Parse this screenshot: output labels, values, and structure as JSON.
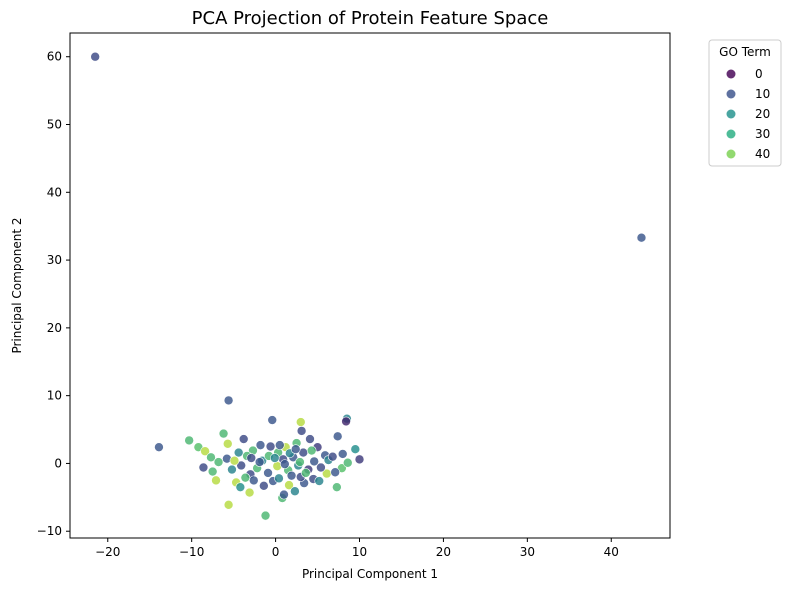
{
  "chart_data": {
    "type": "scatter",
    "title": "PCA Projection of Protein Feature Space",
    "xlabel": "Principal Component 1",
    "ylabel": "Principal Component 2",
    "xlim": [
      -24.5,
      47
    ],
    "ylim": [
      -11,
      63.5
    ],
    "x_ticks": [
      -20,
      -10,
      0,
      10,
      20,
      30,
      40
    ],
    "y_ticks": [
      -10,
      0,
      10,
      20,
      30,
      40,
      50,
      60
    ],
    "grid": false,
    "legend": {
      "title": "GO Term",
      "placement": "outside upper right",
      "entries": [
        {
          "label": "0",
          "color": "#440154"
        },
        {
          "label": "10",
          "color": "#3b528b"
        },
        {
          "label": "20",
          "color": "#21918c"
        },
        {
          "label": "30",
          "color": "#27ad81"
        },
        {
          "label": "40",
          "color": "#7ad151"
        }
      ]
    },
    "points": [
      {
        "x": -21.5,
        "y": 60.0,
        "go": 10
      },
      {
        "x": 43.6,
        "y": 33.3,
        "go": 12
      },
      {
        "x": -13.9,
        "y": 2.4,
        "go": 12
      },
      {
        "x": -5.6,
        "y": 9.3,
        "go": 12
      },
      {
        "x": -10.3,
        "y": 3.4,
        "go": 30
      },
      {
        "x": -0.4,
        "y": 6.4,
        "go": 12
      },
      {
        "x": 3.0,
        "y": 6.1,
        "go": 40
      },
      {
        "x": 8.5,
        "y": 6.6,
        "go": 20
      },
      {
        "x": 8.4,
        "y": 6.2,
        "go": 5
      },
      {
        "x": -6.2,
        "y": 4.4,
        "go": 30
      },
      {
        "x": -3.8,
        "y": 3.6,
        "go": 10
      },
      {
        "x": 3.1,
        "y": 4.8,
        "go": 10
      },
      {
        "x": 7.4,
        "y": 4.0,
        "go": 12
      },
      {
        "x": 9.5,
        "y": 2.1,
        "go": 22
      },
      {
        "x": 10.0,
        "y": 0.6,
        "go": 8
      },
      {
        "x": -9.2,
        "y": 2.4,
        "go": 32
      },
      {
        "x": -8.4,
        "y": 1.8,
        "go": 40
      },
      {
        "x": -7.7,
        "y": 0.9,
        "go": 30
      },
      {
        "x": -8.6,
        "y": -0.6,
        "go": 10
      },
      {
        "x": -7.5,
        "y": -1.2,
        "go": 30
      },
      {
        "x": -7.1,
        "y": -2.5,
        "go": 40
      },
      {
        "x": -5.7,
        "y": 2.9,
        "go": 40
      },
      {
        "x": -5.2,
        "y": -0.9,
        "go": 20
      },
      {
        "x": -4.7,
        "y": -2.8,
        "go": 40
      },
      {
        "x": -4.2,
        "y": -3.5,
        "go": 22
      },
      {
        "x": -3.1,
        "y": -4.3,
        "go": 40
      },
      {
        "x": -5.6,
        "y": -6.1,
        "go": 40
      },
      {
        "x": -1.2,
        "y": -7.7,
        "go": 30
      },
      {
        "x": 0.8,
        "y": -5.1,
        "go": 30
      },
      {
        "x": 1.0,
        "y": -4.6,
        "go": 12
      },
      {
        "x": 1.6,
        "y": -3.2,
        "go": 40
      },
      {
        "x": 2.3,
        "y": -4.1,
        "go": 20
      },
      {
        "x": 3.4,
        "y": -2.9,
        "go": 12
      },
      {
        "x": 4.5,
        "y": -2.3,
        "go": 10
      },
      {
        "x": 5.2,
        "y": -2.6,
        "go": 20
      },
      {
        "x": 6.1,
        "y": -1.5,
        "go": 40
      },
      {
        "x": 7.3,
        "y": -3.5,
        "go": 30
      },
      {
        "x": 7.9,
        "y": -0.7,
        "go": 32
      },
      {
        "x": 8.6,
        "y": 0.1,
        "go": 30
      },
      {
        "x": 8.0,
        "y": 1.4,
        "go": 12
      },
      {
        "x": 5.9,
        "y": 1.2,
        "go": 12
      },
      {
        "x": 5.0,
        "y": 2.4,
        "go": 8
      },
      {
        "x": 4.1,
        "y": 3.6,
        "go": 10
      },
      {
        "x": 2.5,
        "y": 3.0,
        "go": 30
      },
      {
        "x": 1.2,
        "y": 2.4,
        "go": 40
      },
      {
        "x": 0.3,
        "y": 1.6,
        "go": 30
      },
      {
        "x": -0.6,
        "y": 2.5,
        "go": 10
      },
      {
        "x": -1.8,
        "y": 2.7,
        "go": 12
      },
      {
        "x": -2.7,
        "y": 1.9,
        "go": 30
      },
      {
        "x": -3.4,
        "y": 1.1,
        "go": 30
      },
      {
        "x": -4.4,
        "y": 1.6,
        "go": 20
      },
      {
        "x": -5.8,
        "y": 0.7,
        "go": 12
      },
      {
        "x": -6.8,
        "y": 0.2,
        "go": 30
      },
      {
        "x": -4.1,
        "y": -0.3,
        "go": 10
      },
      {
        "x": -3.0,
        "y": -1.6,
        "go": 10
      },
      {
        "x": -2.2,
        "y": -0.7,
        "go": 30
      },
      {
        "x": -1.6,
        "y": 0.4,
        "go": 20
      },
      {
        "x": -0.9,
        "y": -1.4,
        "go": 12
      },
      {
        "x": -0.3,
        "y": -2.6,
        "go": 12
      },
      {
        "x": 0.2,
        "y": -0.4,
        "go": 40
      },
      {
        "x": 0.9,
        "y": 0.6,
        "go": 10
      },
      {
        "x": 1.5,
        "y": -1.0,
        "go": 30
      },
      {
        "x": 2.1,
        "y": 0.9,
        "go": 12
      },
      {
        "x": 2.7,
        "y": -0.3,
        "go": 20
      },
      {
        "x": 3.3,
        "y": 1.6,
        "go": 10
      },
      {
        "x": 3.9,
        "y": -0.9,
        "go": 8
      },
      {
        "x": 4.6,
        "y": 0.3,
        "go": 12
      },
      {
        "x": 5.4,
        "y": -0.6,
        "go": 10
      },
      {
        "x": 6.3,
        "y": 0.5,
        "go": 20
      },
      {
        "x": 7.1,
        "y": -1.3,
        "go": 12
      },
      {
        "x": -2.6,
        "y": -2.5,
        "go": 12
      },
      {
        "x": -1.4,
        "y": -3.3,
        "go": 10
      },
      {
        "x": 0.4,
        "y": -2.2,
        "go": 20
      },
      {
        "x": 1.9,
        "y": -1.8,
        "go": 12
      },
      {
        "x": 3.0,
        "y": -2.0,
        "go": 10
      },
      {
        "x": -0.8,
        "y": 1.1,
        "go": 30
      },
      {
        "x": 0.5,
        "y": 2.7,
        "go": 12
      },
      {
        "x": 1.7,
        "y": 1.5,
        "go": 20
      },
      {
        "x": 2.9,
        "y": 0.2,
        "go": 30
      },
      {
        "x": -1.9,
        "y": 0.2,
        "go": 12
      },
      {
        "x": -3.6,
        "y": -2.1,
        "go": 30
      },
      {
        "x": -4.9,
        "y": 0.4,
        "go": 40
      },
      {
        "x": 4.3,
        "y": 1.9,
        "go": 30
      },
      {
        "x": 6.8,
        "y": 1.0,
        "go": 10
      },
      {
        "x": 1.1,
        "y": -0.1,
        "go": 12
      },
      {
        "x": -0.1,
        "y": 0.8,
        "go": 20
      },
      {
        "x": 2.4,
        "y": 2.1,
        "go": 12
      },
      {
        "x": -2.9,
        "y": 0.8,
        "go": 10
      },
      {
        "x": 3.6,
        "y": -1.4,
        "go": 30
      }
    ]
  }
}
